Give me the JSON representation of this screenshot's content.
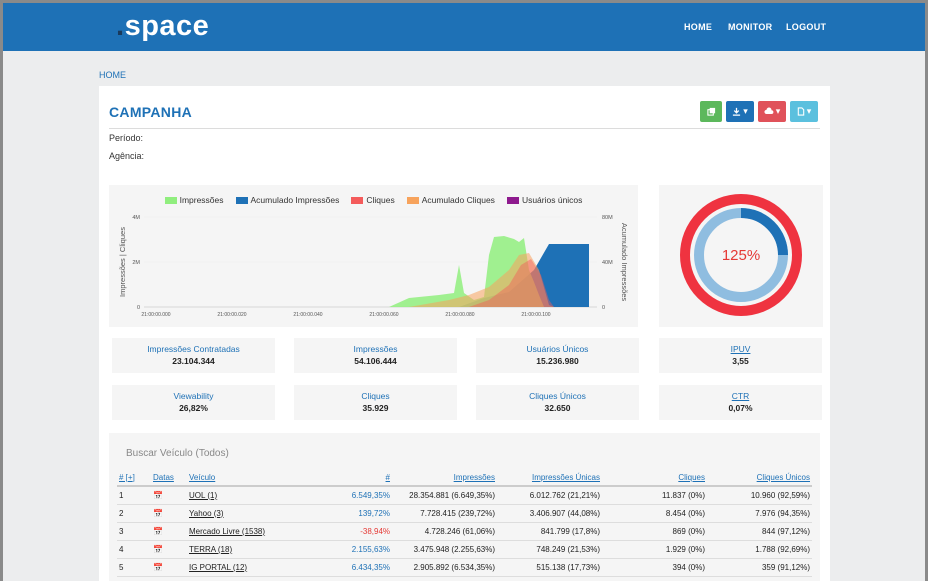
{
  "brand": {
    "dot": ".",
    "name": "space"
  },
  "nav": {
    "home": "HOME",
    "monitor": "MONITOR",
    "logout": "LOGOUT"
  },
  "breadcrumb": "HOME",
  "campaign": {
    "title": "CAMPANHA",
    "periodo_label": "Período:",
    "agencia_label": "Agência:"
  },
  "toolbar": {
    "copy_icon": "copy-icon",
    "download_icon": "download-icon",
    "cloud_icon": "cloud-download-icon",
    "file_icon": "file-icon",
    "caret": "▾"
  },
  "colors": {
    "primary": "#1e71b6",
    "green": "#5cb85c",
    "red": "#e0525a",
    "lightblue": "#5bc0de",
    "donut_outer": "#ef3340",
    "donut_inner": "#8fbde0"
  },
  "chart_data": {
    "type": "area",
    "legend": [
      "Impressões",
      "Acumulado Impressões",
      "Cliques",
      "Acumulado Cliques",
      "Usuários únicos"
    ],
    "legend_colors": [
      "#90ee7e",
      "#1e71b6",
      "#f45b5b",
      "#f7a35c",
      "#8e1a8e"
    ],
    "ylabel_left": "Impressões | Cliques",
    "ylabel_right": "Acumulado Impressões",
    "y_left_ticks": [
      "4M",
      "2M",
      "0"
    ],
    "y_right_ticks": [
      "80M",
      "40M",
      "0"
    ],
    "x_ticks": [
      "21:00:00.000",
      "21:00:00.020",
      "21:00:00.040",
      "21:00:00.060",
      "21:00:00.080",
      "21:00:00.100"
    ]
  },
  "donut": {
    "label": "125%",
    "percent": 125
  },
  "stats": [
    {
      "label": "Impressões Contratadas",
      "value": "23.104.344"
    },
    {
      "label": "Impressões",
      "value": "54.106.444"
    },
    {
      "label": "Usuários Únicos",
      "value": "15.236.980"
    },
    {
      "label": "IPUV",
      "value": "3,55"
    },
    {
      "label": "Viewability",
      "value": "26,82%"
    },
    {
      "label": "Cliques",
      "value": "35.929"
    },
    {
      "label": "Cliques Únicos",
      "value": "32.650"
    },
    {
      "label": "CTR",
      "value": "0,07%"
    }
  ],
  "table": {
    "search_placeholder": "Buscar Veículo (Todos)",
    "headers": [
      "# [+]",
      "Datas",
      "Veículo",
      "#",
      "Impressões",
      "Impressões Únicas",
      "Cliques",
      "Cliques Únicos"
    ],
    "rows": [
      {
        "n": "1",
        "veiculo": "UOL (1)",
        "pct": "6.549,35%",
        "imp": "28.354.881 (6.649,35%)",
        "impu": "6.012.762 (21,21%)",
        "cli": "11.837 (0%)",
        "cliu": "10.960 (92,59%)"
      },
      {
        "n": "2",
        "veiculo": "Yahoo (3)",
        "pct": "139,72%",
        "imp": "7.728.415 (239,72%)",
        "impu": "3.406.907 (44,08%)",
        "cli": "8.454 (0%)",
        "cliu": "7.976 (94,35%)"
      },
      {
        "n": "3",
        "veiculo": "Mercado Livre (1538)",
        "pct": "-38,94%",
        "imp": "4.728.246 (61,06%)",
        "impu": "841.799 (17,8%)",
        "cli": "869 (0%)",
        "cliu": "844 (97,12%)"
      },
      {
        "n": "4",
        "veiculo": "TERRA (18)",
        "pct": "2.155,63%",
        "imp": "3.475.948 (2.255,63%)",
        "impu": "748.249 (21,53%)",
        "cli": "1.929 (0%)",
        "cliu": "1.788 (92,69%)"
      },
      {
        "n": "5",
        "veiculo": "IG PORTAL (12)",
        "pct": "6.434,35%",
        "imp": "2.905.892 (6.534,35%)",
        "impu": "515.138 (17,73%)",
        "cli": "394 (0%)",
        "cliu": "359 (91,12%)"
      }
    ]
  }
}
